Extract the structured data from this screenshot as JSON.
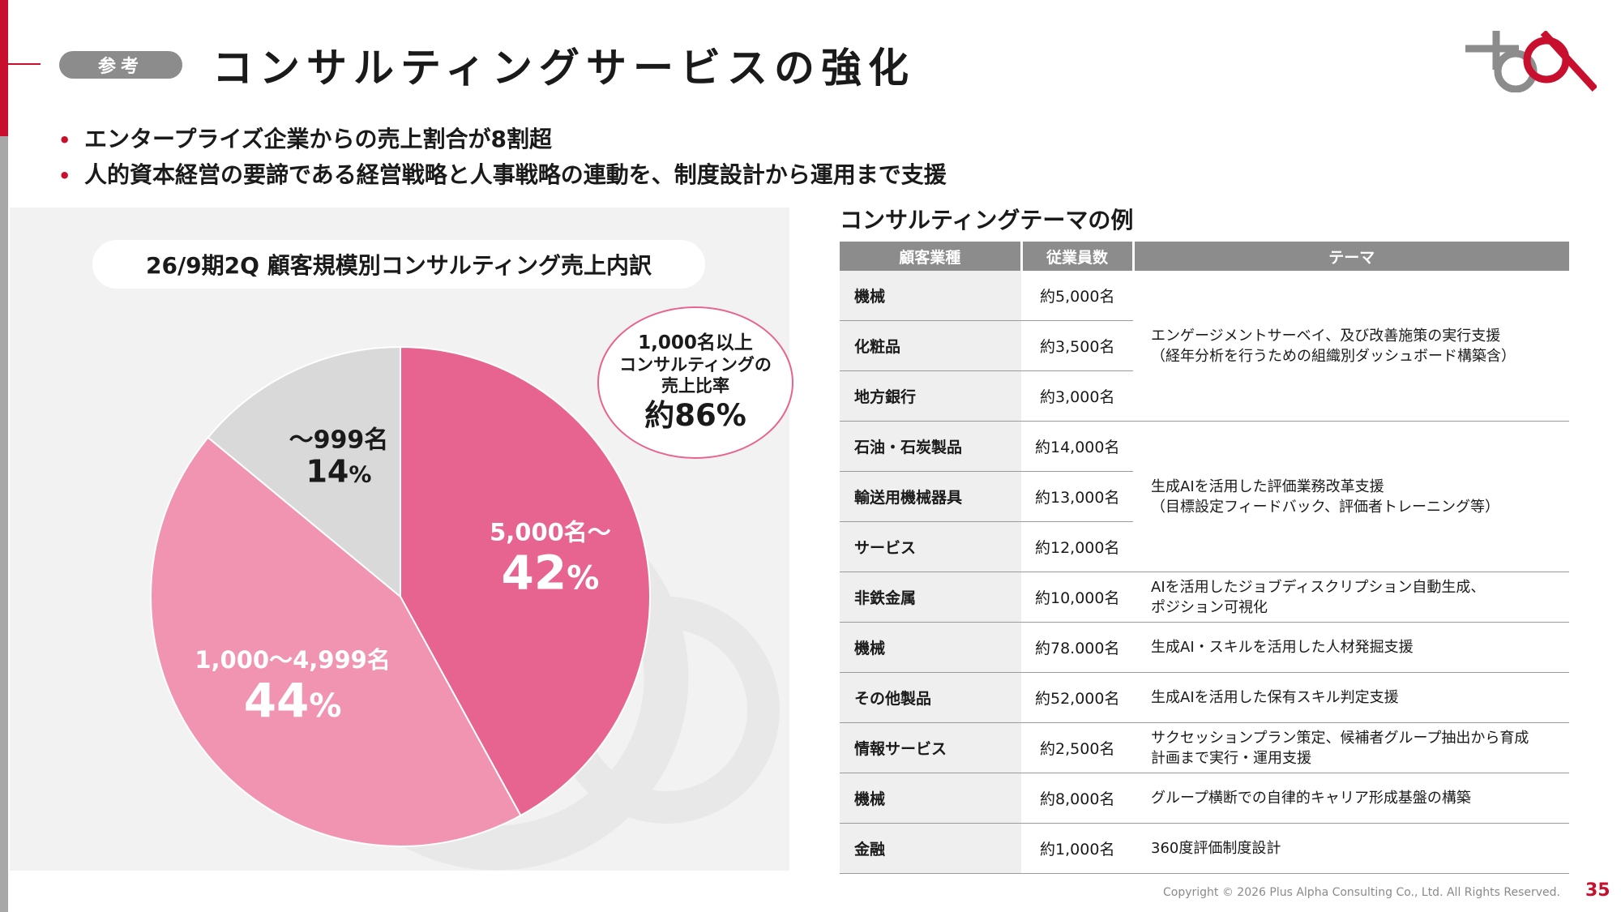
{
  "header": {
    "tag": "参考",
    "title": "コンサルティングサービスの強化"
  },
  "bullets": [
    "エンタープライズ企業からの売上割合が8割超",
    "人的資本経営の要諦である経営戦略と人事戦略の連動を、制度設計から運用まで支援"
  ],
  "chart_data": {
    "type": "pie",
    "title": "26/9期2Q 顧客規模別コンサルティング売上内訳",
    "slices": [
      {
        "label": "5,000名～",
        "value": 42,
        "value_text": "42",
        "color": "#e86490"
      },
      {
        "label": "1,000～4,999名",
        "value": 44,
        "value_text": "44",
        "color": "#f094b2"
      },
      {
        "label": "～999名",
        "value": 14,
        "value_text": "14",
        "color": "#d9d9d9"
      }
    ],
    "percent_sign": "%",
    "callout": {
      "line1": "1,000名以上",
      "line2": "コンサルティングの",
      "line3": "売上比率",
      "value": "約86%"
    }
  },
  "table": {
    "title": "コンサルティングテーマの例",
    "headers": [
      "顧客業種",
      "従業員数",
      "テーマ"
    ],
    "rows": [
      {
        "industry": "機械",
        "employees": "約5,000名"
      },
      {
        "industry": "化粧品",
        "employees": "約3,500名"
      },
      {
        "industry": "地方銀行",
        "employees": "約3,000名"
      },
      {
        "industry": "石油・石炭製品",
        "employees": "約14,000名"
      },
      {
        "industry": "輸送用機械器具",
        "employees": "約13,000名"
      },
      {
        "industry": "サービス",
        "employees": "約12,000名"
      },
      {
        "industry": "非鉄金属",
        "employees": "約10,000名"
      },
      {
        "industry": "機械",
        "employees": "約78.000名"
      },
      {
        "industry": "その他製品",
        "employees": "約52,000名"
      },
      {
        "industry": "情報サービス",
        "employees": "約2,500名"
      },
      {
        "industry": "機械",
        "employees": "約8,000名"
      },
      {
        "industry": "金融",
        "employees": "約1,000名"
      }
    ],
    "themes": [
      "エンゲージメントサーベイ、及び改善施策の実行支援\n（経年分析を行うための組織別ダッシュボード構築含）",
      "生成AIを活用した評価業務改革支援\n（目標設定フィードバック、評価者トレーニング等）",
      "AIを活用したジョブディスクリプション自動生成、\nポジション可視化",
      "生成AI・スキルを活用した人材発掘支援",
      "生成AIを活用した保有スキル判定支援",
      "サクセッションプラン策定、候補者グループ抽出から育成\n計画まで実行・運用支援",
      "グループ横断での自律的キャリア形成基盤の構築",
      "360度評価制度設計"
    ]
  },
  "footer": {
    "copyright": "Copyright © 2026 Plus Alpha Consulting Co., Ltd. All Rights Reserved.",
    "page": "35"
  },
  "colors": {
    "accent_red": "#c8102e",
    "header_gray": "#8c8c8c",
    "pink_dark": "#e86490",
    "pink_light": "#f094b2",
    "slice_gray": "#d9d9d9"
  }
}
